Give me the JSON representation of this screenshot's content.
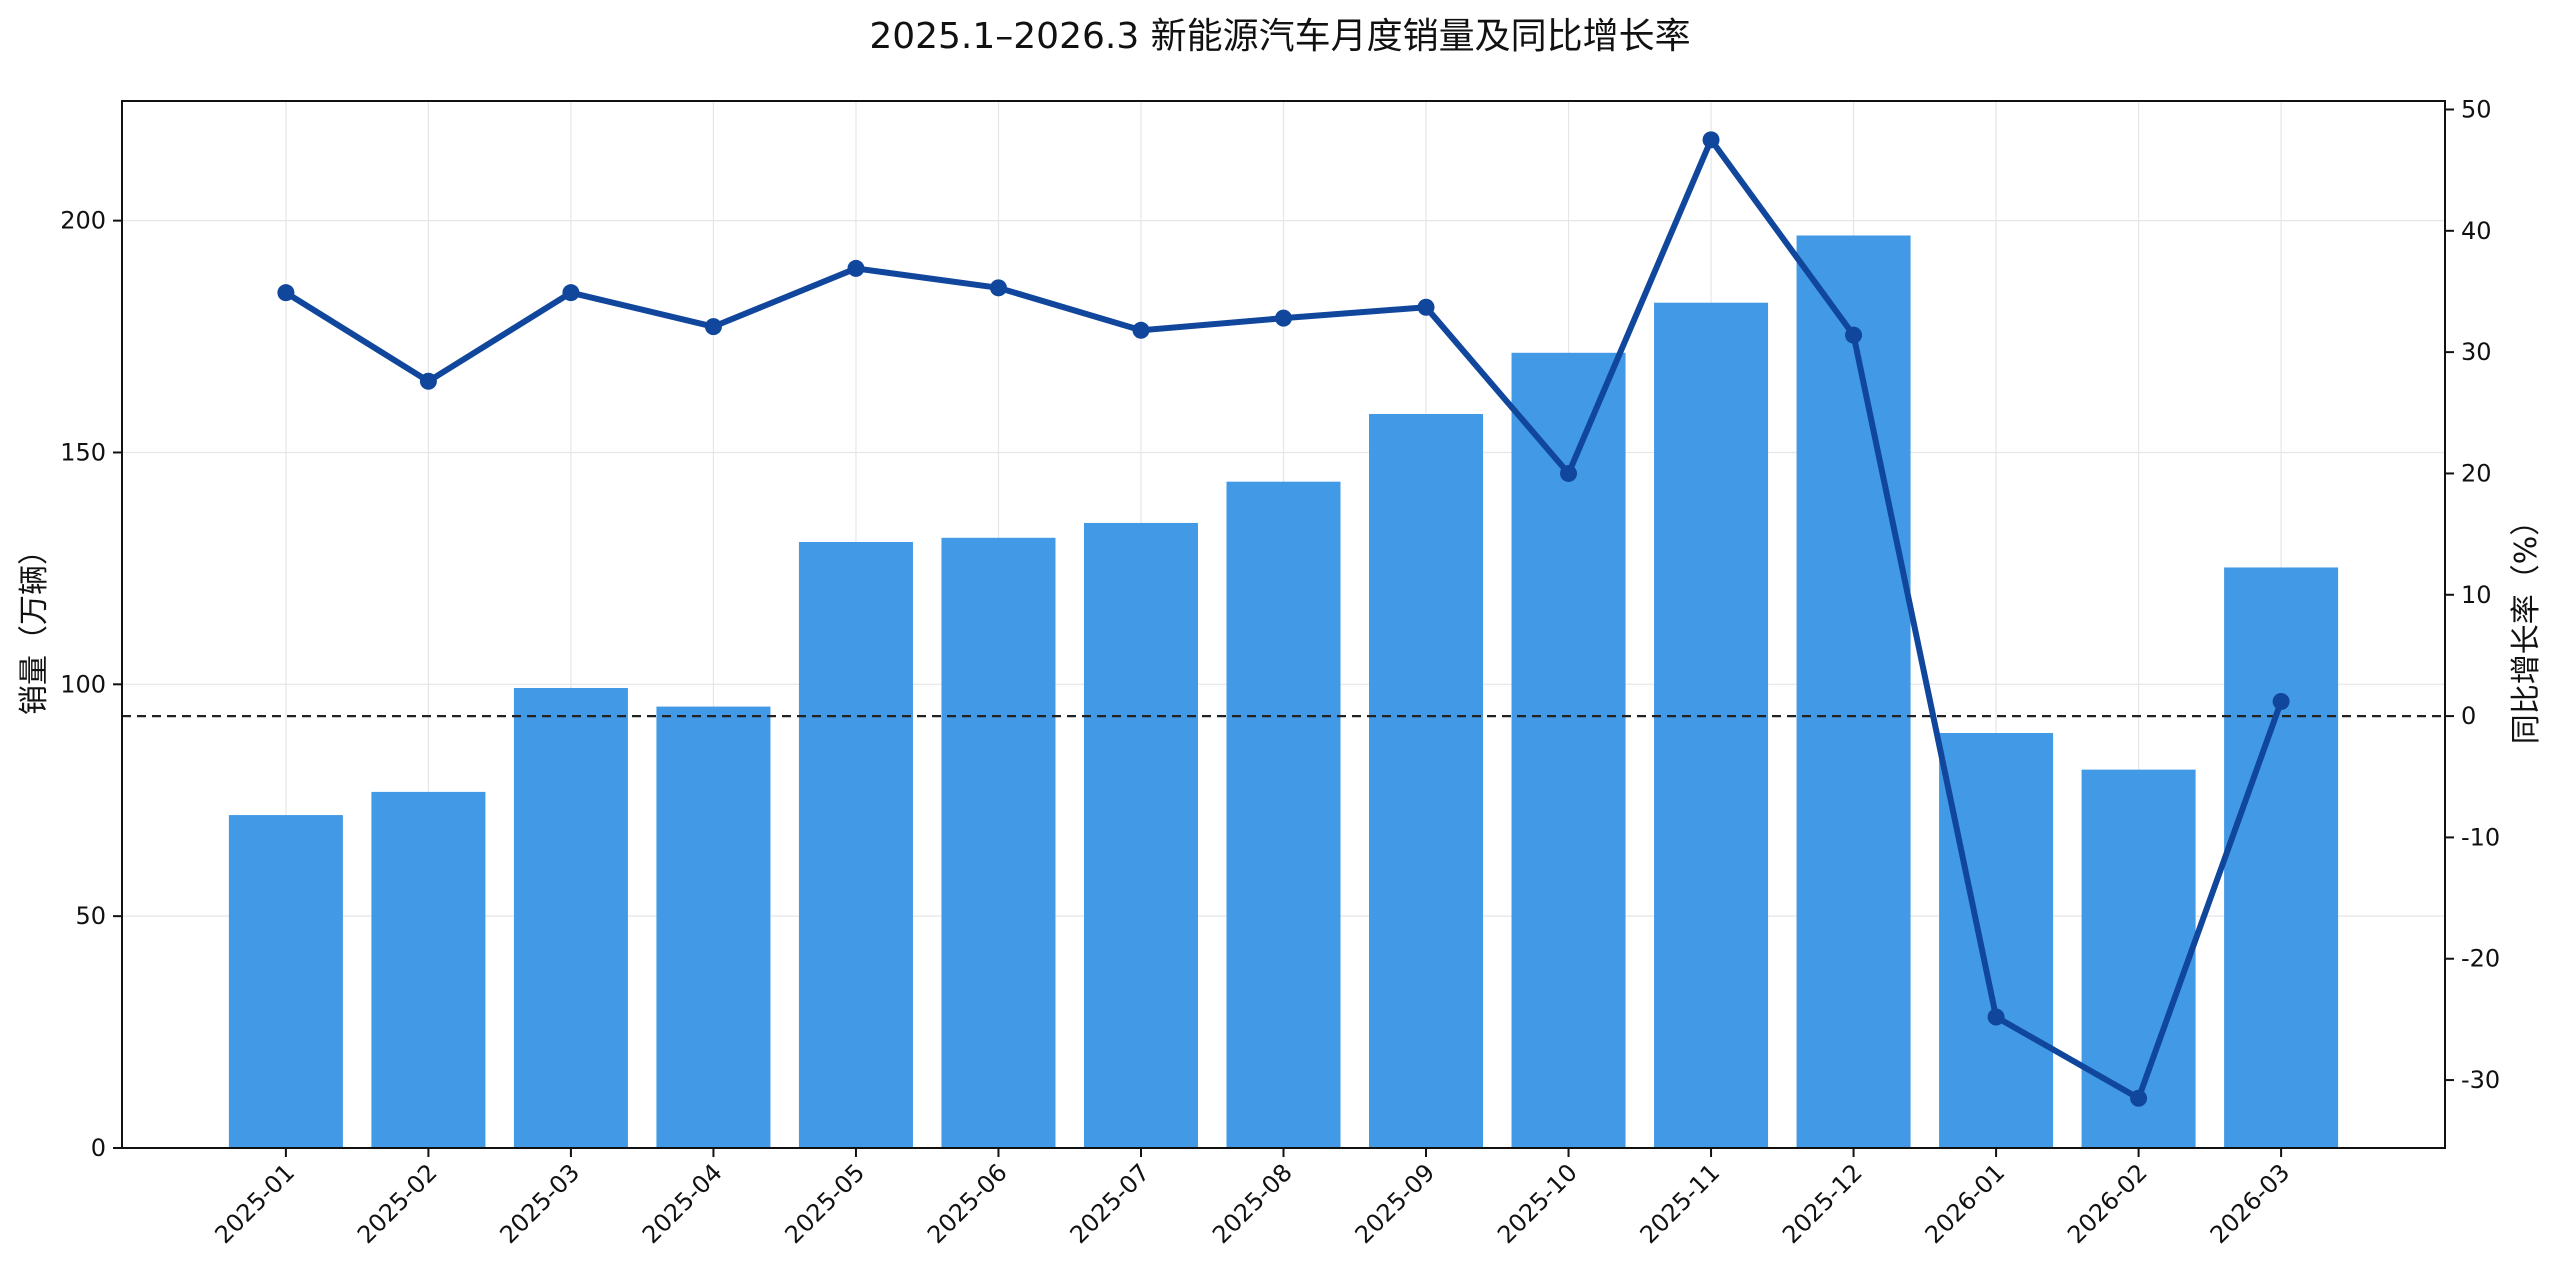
{
  "chart_data": {
    "type": "bar",
    "title": "2025.1–2026.3 新能源汽车月度销量及同比增长率",
    "xlabel": "",
    "ylabel": "销量（万辆）",
    "ylabel_right": "同比增长率（%）",
    "categories": [
      "2025-01",
      "2025-02",
      "2025-03",
      "2025-04",
      "2025-05",
      "2025-06",
      "2025-07",
      "2025-08",
      "2025-09",
      "2025-10",
      "2025-11",
      "2025-12",
      "2026-01",
      "2026-02",
      "2026-03"
    ],
    "series": [
      {
        "type": "bar",
        "axis": "left",
        "values": [
          71.8,
          76.8,
          99.2,
          95.2,
          130.7,
          131.6,
          134.8,
          143.7,
          158.3,
          171.5,
          182.3,
          196.8,
          89.5,
          81.6,
          125.2
        ]
      },
      {
        "type": "line",
        "axis": "right",
        "values": [
          34.9,
          27.6,
          34.9,
          32.1,
          36.9,
          35.3,
          31.8,
          32.8,
          33.7,
          20.0,
          47.5,
          31.4,
          -24.8,
          -31.5,
          1.2
        ]
      }
    ],
    "ylim": [
      0,
      225.8
    ],
    "ylim_right": [
      -35.6,
      50.7
    ],
    "yticks": [
      0,
      50,
      100,
      150,
      200
    ],
    "yticks_right": [
      -30,
      -20,
      -10,
      0,
      10,
      20,
      30,
      40,
      50
    ],
    "reference_line": {
      "axis": "right",
      "value": 0,
      "style": "dashed"
    },
    "grid": true,
    "legend": "none",
    "colors": {
      "bar": "#4299e6",
      "line": "#10479c",
      "reference": "#222222",
      "grid": "#e6e6e6"
    }
  }
}
